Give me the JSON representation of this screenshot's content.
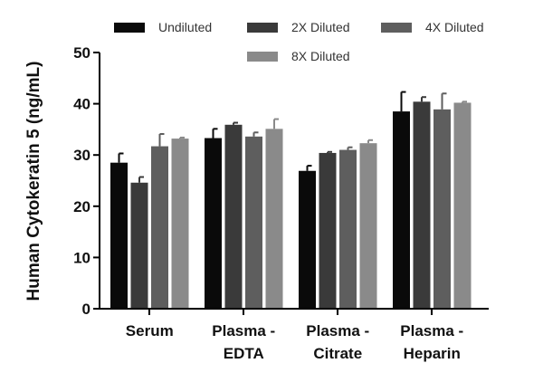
{
  "chart_data": {
    "type": "bar",
    "title": "",
    "xlabel": "",
    "ylabel": "Human Cytokeratin 5 (ng/mL)",
    "ylim": [
      0,
      50
    ],
    "yticks": [
      0,
      10,
      20,
      30,
      40,
      50
    ],
    "grid": false,
    "legend_position": "top",
    "categories": [
      {
        "line1": "Serum",
        "line2": ""
      },
      {
        "line1": "Plasma -",
        "line2": "EDTA"
      },
      {
        "line1": "Plasma -",
        "line2": "Citrate"
      },
      {
        "line1": "Plasma -",
        "line2": "Heparin"
      }
    ],
    "series": [
      {
        "name": "Undiluted",
        "color": "#0a0a0a",
        "values": [
          28.5,
          33.3,
          26.9,
          38.5
        ],
        "errors": [
          1.8,
          1.8,
          1.0,
          3.8
        ]
      },
      {
        "name": "2X Diluted",
        "color": "#3a3a3a",
        "values": [
          24.6,
          35.9,
          30.4,
          40.4
        ],
        "errors": [
          1.1,
          0.4,
          0.2,
          0.9
        ]
      },
      {
        "name": "4X Diluted",
        "color": "#5e5e5e",
        "values": [
          31.7,
          33.6,
          31.0,
          38.9
        ],
        "errors": [
          2.4,
          0.8,
          0.5,
          3.1
        ]
      },
      {
        "name": "8X Diluted",
        "color": "#8a8a8a",
        "values": [
          33.2,
          35.1,
          32.3,
          40.2
        ],
        "errors": [
          0.2,
          1.9,
          0.6,
          0.2
        ]
      }
    ]
  }
}
